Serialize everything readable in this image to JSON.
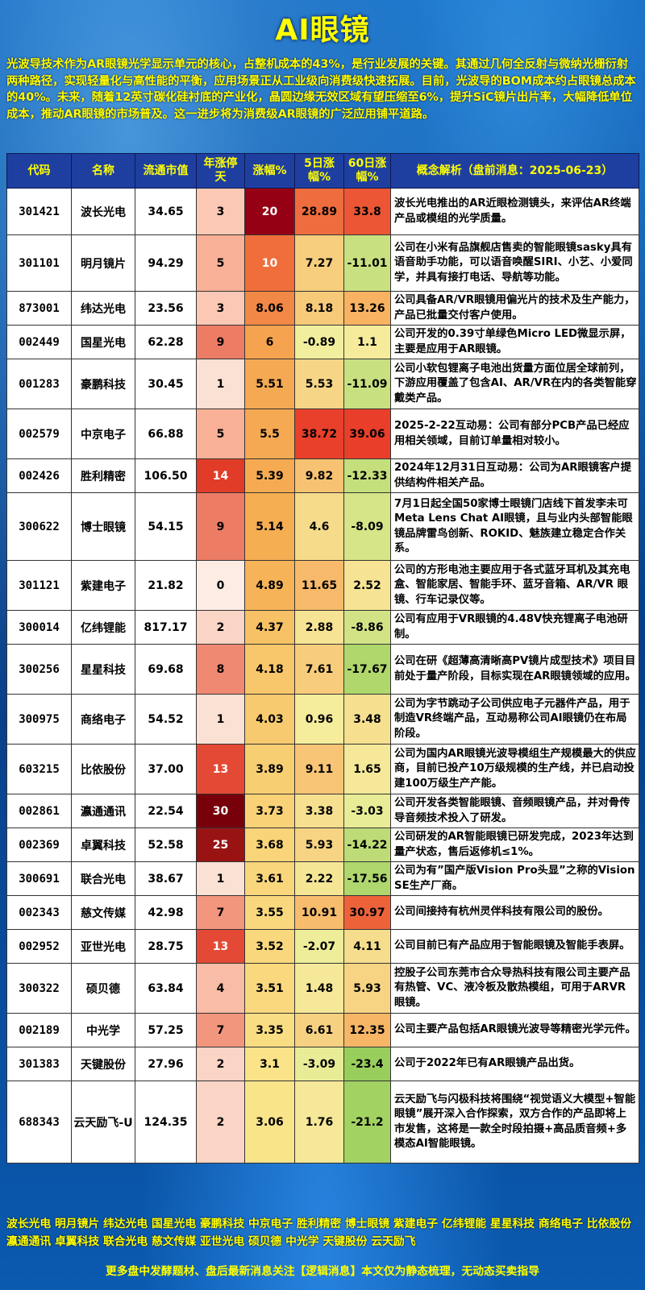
{
  "title": "AI眼镜",
  "intro": "光波导技术作为AR眼镜光学显示单元的核心，占整机成本的43%，是行业发展的关键。其通过几何全反射与微纳光栅衍射两种路径，实现轻量化与高性能的平衡，应用场景正从工业级向消费级快速拓展。目前，光波导的BOM成本约占眼镜总成本的40%。未来，随着12英寸碳化硅衬底的产业化，晶圆边缘无效区域有望压缩至6%，提升SiC镜片出片率，大幅降低单位成本，推动AR眼镜的市场普及。这一进步将为消费级AR眼镜的广泛应用铺平道路。",
  "headers": [
    "代码",
    "名称",
    "流通市值",
    "年涨停天",
    "涨幅%",
    "5日涨幅%",
    "60日涨幅%",
    "概念解析（盘前消息：2025-06-23）"
  ],
  "rows": [
    {
      "code": "301421",
      "name": "波长光电",
      "cap": "34.65",
      "limit": "3",
      "chg": "20",
      "d5": "28.89",
      "d60": "33.8",
      "desc": "波长光电推出的AR近眼检测镜头，来评估AR终端产品或模组的光学质量。"
    },
    {
      "code": "301101",
      "name": "明月镜片",
      "cap": "94.29",
      "limit": "5",
      "chg": "10",
      "d5": "7.27",
      "d60": "-11.01",
      "desc": "公司在小米有品旗舰店售卖的智能眼镜sasky具有语音助手功能，可以语音唤醒SIRI、小艺、小爱同学，并具有接打电话、导航等功能。"
    },
    {
      "code": "873001",
      "name": "纬达光电",
      "cap": "23.56",
      "limit": "3",
      "chg": "8.06",
      "d5": "8.18",
      "d60": "13.26",
      "desc": "公司具备AR/VR眼镜用偏光片的技术及生产能力，产品已批量交付客户使用。"
    },
    {
      "code": "002449",
      "name": "国星光电",
      "cap": "62.28",
      "limit": "9",
      "chg": "6",
      "d5": "-0.89",
      "d60": "1.1",
      "desc": "公司开发的0.39寸单绿色Micro LED微显示屏，主要是应用于AR眼镜。"
    },
    {
      "code": "001283",
      "name": "豪鹏科技",
      "cap": "30.45",
      "limit": "1",
      "chg": "5.51",
      "d5": "5.53",
      "d60": "-11.09",
      "desc": "公司小软包锂离子电池出货量方面位居全球前列，下游应用覆盖了包含AI、AR/VR在内的各类智能穿戴类产品。"
    },
    {
      "code": "002579",
      "name": "中京电子",
      "cap": "66.88",
      "limit": "5",
      "chg": "5.5",
      "d5": "38.72",
      "d60": "39.06",
      "desc": "2025-2-22互动易：公司有部分PCB产品已经应用相关领域，目前订单量相对较小。"
    },
    {
      "code": "002426",
      "name": "胜利精密",
      "cap": "106.50",
      "limit": "14",
      "chg": "5.39",
      "d5": "9.82",
      "d60": "-12.33",
      "desc": "2024年12月31日互动易：公司为AR眼镜客户提供结构件相关产品。"
    },
    {
      "code": "300622",
      "name": "博士眼镜",
      "cap": "54.15",
      "limit": "9",
      "chg": "5.14",
      "d5": "4.6",
      "d60": "-8.09",
      "desc": "7月1日起全国50家博士眼镜门店线下首发李未可Meta Lens Chat AI眼镜，且与业内头部智能眼镜品牌雷鸟创新、ROKID、魅族建立稳定合作关系。"
    },
    {
      "code": "301121",
      "name": "紫建电子",
      "cap": "21.82",
      "limit": "0",
      "chg": "4.89",
      "d5": "11.65",
      "d60": "2.52",
      "desc": "公司的方形电池主要应用于各式蓝牙耳机及其充电盒、智能家居、智能手环、蓝牙音箱、AR/VR 眼镜、行车记录仪等。"
    },
    {
      "code": "300014",
      "name": "亿纬锂能",
      "cap": "817.17",
      "limit": "2",
      "chg": "4.37",
      "d5": "2.88",
      "d60": "-8.86",
      "desc": "公司有应用于VR眼镜的4.48V快充锂离子电池研制。"
    },
    {
      "code": "300256",
      "name": "星星科技",
      "cap": "69.68",
      "limit": "8",
      "chg": "4.18",
      "d5": "7.61",
      "d60": "-17.67",
      "desc": "公司在研《超薄高清晰高PV镜片成型技术》项目目前处于量产阶段，目标实现在AR眼镜领域的应用。"
    },
    {
      "code": "300975",
      "name": "商络电子",
      "cap": "54.52",
      "limit": "1",
      "chg": "4.03",
      "d5": "0.96",
      "d60": "3.48",
      "desc": "公司为字节跳动子公司供应电子元器件产品，用于制造VR终端产品，互动易称公司AI眼镜仍在布局阶段。"
    },
    {
      "code": "603215",
      "name": "比依股份",
      "cap": "37.00",
      "limit": "13",
      "chg": "3.89",
      "d5": "9.11",
      "d60": "1.65",
      "desc": "公司为国内AR眼镜光波导模组生产规模最大的供应商，目前已投产10万级规模的生产线，并已启动投建100万级生产产能。"
    },
    {
      "code": "002861",
      "name": "瀛通通讯",
      "cap": "22.54",
      "limit": "30",
      "chg": "3.73",
      "d5": "3.38",
      "d60": "-3.03",
      "desc": "公司开发各类智能眼镜、音频眼镜产品，并对骨传导音频技术投入了研发。"
    },
    {
      "code": "002369",
      "name": "卓翼科技",
      "cap": "52.58",
      "limit": "25",
      "chg": "3.68",
      "d5": "5.93",
      "d60": "-14.22",
      "desc": "公司研发的AR智能眼镜已研发完成，2023年达到量产状态，售后返修机≤1%。"
    },
    {
      "code": "300691",
      "name": "联合光电",
      "cap": "38.67",
      "limit": "1",
      "chg": "3.61",
      "d5": "2.22",
      "d60": "-17.56",
      "desc": "公司为有”国产版Vision Pro头显”之称的Vision SE生产厂商。"
    },
    {
      "code": "002343",
      "name": "慈文传媒",
      "cap": "42.98",
      "limit": "7",
      "chg": "3.55",
      "d5": "10.91",
      "d60": "30.97",
      "desc": "公司间接持有杭州灵伴科技有限公司的股份。"
    },
    {
      "code": "002952",
      "name": "亚世光电",
      "cap": "28.75",
      "limit": "13",
      "chg": "3.52",
      "d5": "-2.07",
      "d60": "4.11",
      "desc": "公司目前已有产品应用于智能眼镜及智能手表屏。"
    },
    {
      "code": "300322",
      "name": "硕贝德",
      "cap": "63.84",
      "limit": "4",
      "chg": "3.51",
      "d5": "1.48",
      "d60": "5.93",
      "desc": "控股子公司东莞市合众导热科技有限公司主要产品有热管、VC、液冷板及散热模组，可用于ARVR 眼镜。"
    },
    {
      "code": "002189",
      "name": "中光学",
      "cap": "57.25",
      "limit": "7",
      "chg": "3.35",
      "d5": "6.61",
      "d60": "12.35",
      "desc": "公司主要产品包括AR眼镜光波导等精密光学元件。"
    },
    {
      "code": "301383",
      "name": "天键股份",
      "cap": "27.96",
      "limit": "2",
      "chg": "3.1",
      "d5": "-3.09",
      "d60": "-23.4",
      "desc": "公司于2022年已有AR眼镜产品出货。"
    },
    {
      "code": "688343",
      "name": "云天励飞-U",
      "cap": "124.35",
      "limit": "2",
      "chg": "3.06",
      "d5": "1.76",
      "d60": "-21.2",
      "desc": "云天励飞与闪极科技将围绕“视觉语义大模型+智能眼镜”展开深入合作探索，双方合作的产品即将上市发售，这将是一款全时段拍摄+高品质音频+多模态AI智能眼镜。"
    }
  ],
  "ticker": "波长光电 明月镜片 纬达光电 国星光电 豪鹏科技 中京电子 胜利精密 博士眼镜 紫建电子 亿纬锂能 星星科技 商络电子 比依股份 瀛通通讯 卓翼科技 联合光电 慈文传媒 亚世光电 硕贝德 中光学 天键股份 云天励飞",
  "footer": "更多盘中发酵题材、盘后最新消息关注【逻辑消息】本文仅为静态梳理，无动态买卖指导"
}
